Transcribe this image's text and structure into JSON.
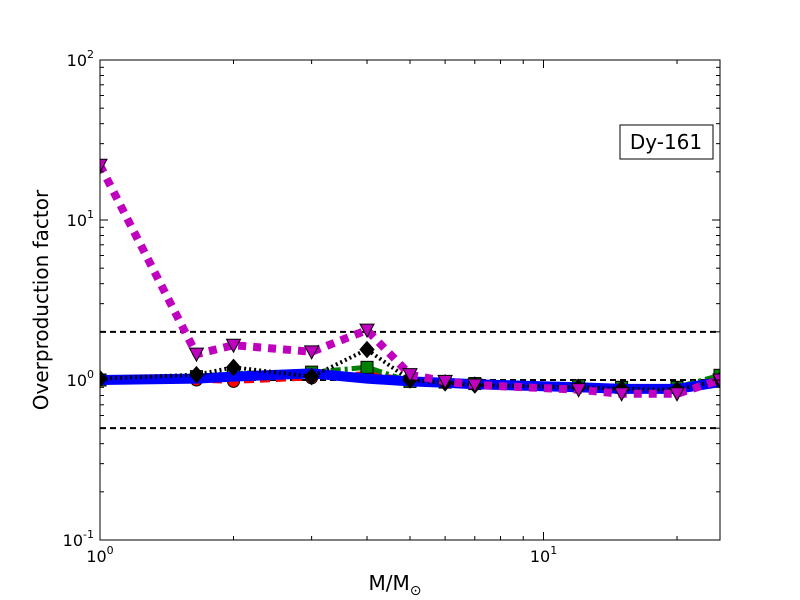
{
  "chart_data": {
    "type": "line",
    "xscale": "log",
    "yscale": "log",
    "xlim": [
      1,
      25
    ],
    "ylim": [
      0.1,
      100
    ],
    "xlabel_main": "M/M",
    "xlabel_sub": "⊙",
    "ylabel": "Overproduction factor",
    "label_box": "Dy-161",
    "xticks": [
      {
        "value": 1,
        "base": "10",
        "exp": "0"
      },
      {
        "value": 10,
        "base": "10",
        "exp": "1"
      }
    ],
    "yticks": [
      {
        "value": 0.1,
        "base": "10",
        "exp": "-1"
      },
      {
        "value": 1,
        "base": "10",
        "exp": "0"
      },
      {
        "value": 10,
        "base": "10",
        "exp": "1"
      },
      {
        "value": 100,
        "base": "10",
        "exp": "2"
      }
    ],
    "reference_lines": [
      0.5,
      1,
      2
    ],
    "series": [
      {
        "color": "#ff0000",
        "dash": "dashed",
        "marker": "circle",
        "x": [
          1,
          1.65,
          2,
          3,
          4,
          5,
          6,
          7,
          12,
          15,
          20,
          25
        ],
        "y": [
          1.0,
          1.0,
          0.98,
          1.03,
          1.1,
          1.0,
          0.97,
          0.95,
          0.92,
          0.9,
          0.88,
          1.0
        ]
      },
      {
        "color": "#008000",
        "dash": "dashdot",
        "marker": "square",
        "x": [
          1,
          1.65,
          2,
          3,
          4,
          5,
          6,
          7,
          12,
          15,
          20,
          25
        ],
        "y": [
          1.0,
          1.05,
          1.1,
          1.12,
          1.2,
          0.98,
          0.97,
          0.95,
          0.92,
          0.9,
          0.9,
          1.07
        ]
      },
      {
        "color": "#0000ff",
        "dash": "solid",
        "marker": "none",
        "x": [
          1,
          1.65,
          2,
          3,
          4,
          5,
          6,
          7,
          12,
          15,
          20,
          25
        ],
        "y": [
          1.0,
          1.02,
          1.05,
          1.1,
          1.02,
          0.98,
          0.96,
          0.94,
          0.9,
          0.88,
          0.88,
          0.97
        ]
      },
      {
        "color": "#000000",
        "dash": "dotted",
        "marker": "diamond",
        "x": [
          1,
          1.65,
          2,
          3,
          4,
          5,
          6,
          7,
          12,
          15,
          20,
          25
        ],
        "y": [
          1.02,
          1.08,
          1.2,
          1.05,
          1.55,
          1.0,
          0.96,
          0.93,
          0.9,
          0.88,
          0.87,
          1.0
        ]
      },
      {
        "color": "#bf00bf",
        "dash": "dotted",
        "marker": "triangle-down",
        "x": [
          1,
          1.65,
          2,
          3,
          4,
          5,
          6,
          7,
          12,
          15,
          20,
          25
        ],
        "y": [
          22,
          1.45,
          1.65,
          1.5,
          2.05,
          1.08,
          0.98,
          0.93,
          0.87,
          0.82,
          0.82,
          1.0
        ]
      }
    ]
  }
}
